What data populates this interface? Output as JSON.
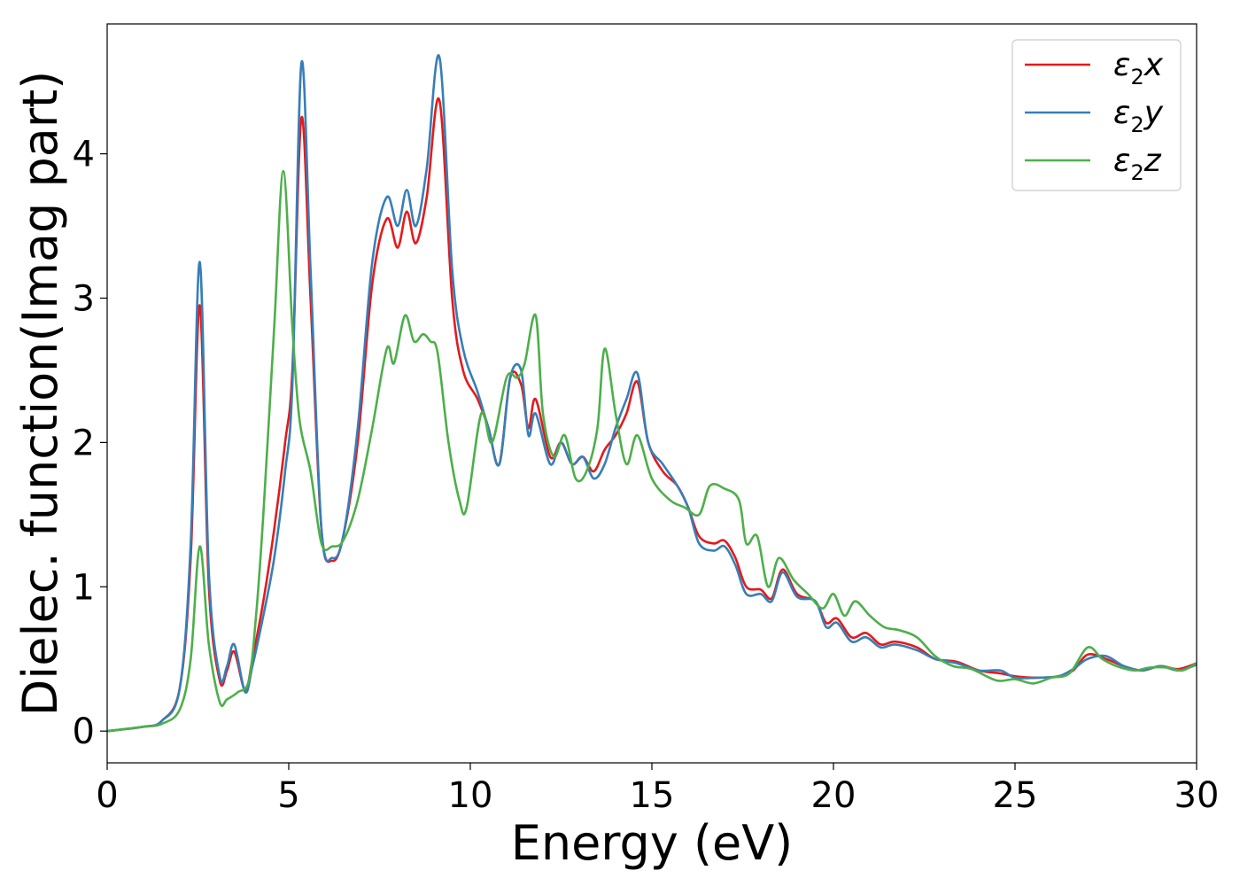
{
  "chart_data": {
    "type": "line",
    "title": "",
    "xlabel": "Energy (eV)",
    "ylabel": "Dielec. function(Imag part)",
    "xlim": [
      0,
      30
    ],
    "ylim": [
      -0.22,
      4.9
    ],
    "xticks": [
      0,
      5,
      10,
      15,
      20,
      25,
      30
    ],
    "yticks": [
      0,
      1,
      2,
      3,
      4
    ],
    "grid": false,
    "legend_position": "top-right",
    "series": [
      {
        "name": "ε₂x",
        "legend_base": "ε",
        "legend_sub": "2",
        "legend_axis": "x",
        "color": "#e41a1c",
        "points": [
          [
            0,
            0
          ],
          [
            1,
            0.03
          ],
          [
            1.5,
            0.07
          ],
          [
            2.0,
            0.3
          ],
          [
            2.3,
            1.2
          ],
          [
            2.55,
            2.95
          ],
          [
            2.8,
            1.0
          ],
          [
            3.1,
            0.35
          ],
          [
            3.3,
            0.42
          ],
          [
            3.5,
            0.55
          ],
          [
            3.8,
            0.28
          ],
          [
            4.0,
            0.5
          ],
          [
            4.3,
            0.9
          ],
          [
            4.6,
            1.4
          ],
          [
            4.9,
            2.0
          ],
          [
            5.1,
            2.5
          ],
          [
            5.35,
            4.25
          ],
          [
            5.6,
            3.0
          ],
          [
            5.9,
            1.4
          ],
          [
            6.2,
            1.18
          ],
          [
            6.5,
            1.35
          ],
          [
            6.9,
            2.0
          ],
          [
            7.3,
            3.1
          ],
          [
            7.7,
            3.55
          ],
          [
            8.0,
            3.35
          ],
          [
            8.25,
            3.6
          ],
          [
            8.5,
            3.38
          ],
          [
            8.8,
            3.7
          ],
          [
            9.15,
            4.37
          ],
          [
            9.5,
            3.0
          ],
          [
            9.8,
            2.5
          ],
          [
            10.2,
            2.3
          ],
          [
            10.5,
            2.1
          ],
          [
            10.8,
            1.85
          ],
          [
            11.1,
            2.45
          ],
          [
            11.4,
            2.4
          ],
          [
            11.6,
            2.1
          ],
          [
            11.8,
            2.3
          ],
          [
            12.2,
            1.9
          ],
          [
            12.5,
            2.0
          ],
          [
            12.8,
            1.85
          ],
          [
            13.1,
            1.9
          ],
          [
            13.4,
            1.8
          ],
          [
            13.7,
            1.95
          ],
          [
            14.0,
            2.05
          ],
          [
            14.3,
            2.2
          ],
          [
            14.6,
            2.42
          ],
          [
            14.9,
            2.0
          ],
          [
            15.3,
            1.8
          ],
          [
            15.7,
            1.7
          ],
          [
            16.0,
            1.55
          ],
          [
            16.3,
            1.35
          ],
          [
            16.7,
            1.3
          ],
          [
            17.0,
            1.32
          ],
          [
            17.3,
            1.2
          ],
          [
            17.6,
            1.0
          ],
          [
            18.0,
            0.98
          ],
          [
            18.3,
            0.92
          ],
          [
            18.6,
            1.12
          ],
          [
            19.0,
            0.95
          ],
          [
            19.5,
            0.9
          ],
          [
            19.8,
            0.75
          ],
          [
            20.1,
            0.78
          ],
          [
            20.5,
            0.65
          ],
          [
            20.9,
            0.68
          ],
          [
            21.3,
            0.6
          ],
          [
            21.7,
            0.62
          ],
          [
            22.3,
            0.58
          ],
          [
            22.8,
            0.5
          ],
          [
            23.4,
            0.48
          ],
          [
            24.0,
            0.42
          ],
          [
            24.6,
            0.4
          ],
          [
            25.0,
            0.38
          ],
          [
            25.6,
            0.37
          ],
          [
            26.2,
            0.38
          ],
          [
            26.6,
            0.42
          ],
          [
            27.0,
            0.53
          ],
          [
            27.5,
            0.5
          ],
          [
            28.0,
            0.45
          ],
          [
            28.5,
            0.42
          ],
          [
            29.0,
            0.45
          ],
          [
            29.5,
            0.43
          ],
          [
            30,
            0.47
          ]
        ]
      },
      {
        "name": "ε₂y",
        "legend_base": "ε",
        "legend_sub": "2",
        "legend_axis": "y",
        "color": "#377eb8",
        "points": [
          [
            0,
            0
          ],
          [
            1,
            0.03
          ],
          [
            1.5,
            0.07
          ],
          [
            2.0,
            0.3
          ],
          [
            2.3,
            1.3
          ],
          [
            2.55,
            3.25
          ],
          [
            2.8,
            1.1
          ],
          [
            3.1,
            0.38
          ],
          [
            3.3,
            0.45
          ],
          [
            3.5,
            0.6
          ],
          [
            3.8,
            0.27
          ],
          [
            4.0,
            0.45
          ],
          [
            4.3,
            0.8
          ],
          [
            4.6,
            1.2
          ],
          [
            4.9,
            1.8
          ],
          [
            5.1,
            2.4
          ],
          [
            5.35,
            4.63
          ],
          [
            5.6,
            3.2
          ],
          [
            5.9,
            1.4
          ],
          [
            6.2,
            1.2
          ],
          [
            6.5,
            1.35
          ],
          [
            6.9,
            2.1
          ],
          [
            7.3,
            3.25
          ],
          [
            7.7,
            3.7
          ],
          [
            8.0,
            3.5
          ],
          [
            8.25,
            3.75
          ],
          [
            8.5,
            3.5
          ],
          [
            8.8,
            3.9
          ],
          [
            9.15,
            4.67
          ],
          [
            9.5,
            3.2
          ],
          [
            9.8,
            2.65
          ],
          [
            10.2,
            2.35
          ],
          [
            10.5,
            2.1
          ],
          [
            10.8,
            1.85
          ],
          [
            11.1,
            2.45
          ],
          [
            11.4,
            2.5
          ],
          [
            11.6,
            2.05
          ],
          [
            11.8,
            2.2
          ],
          [
            12.2,
            1.85
          ],
          [
            12.5,
            2.0
          ],
          [
            12.8,
            1.85
          ],
          [
            13.1,
            1.9
          ],
          [
            13.4,
            1.75
          ],
          [
            13.7,
            1.85
          ],
          [
            14.0,
            2.1
          ],
          [
            14.3,
            2.3
          ],
          [
            14.6,
            2.48
          ],
          [
            14.9,
            2.0
          ],
          [
            15.3,
            1.85
          ],
          [
            15.7,
            1.7
          ],
          [
            16.0,
            1.55
          ],
          [
            16.3,
            1.3
          ],
          [
            16.7,
            1.25
          ],
          [
            17.0,
            1.28
          ],
          [
            17.3,
            1.15
          ],
          [
            17.6,
            0.95
          ],
          [
            18.0,
            0.95
          ],
          [
            18.3,
            0.9
          ],
          [
            18.6,
            1.1
          ],
          [
            19.0,
            0.93
          ],
          [
            19.5,
            0.9
          ],
          [
            19.8,
            0.72
          ],
          [
            20.1,
            0.75
          ],
          [
            20.5,
            0.62
          ],
          [
            20.9,
            0.65
          ],
          [
            21.3,
            0.58
          ],
          [
            21.7,
            0.6
          ],
          [
            22.3,
            0.56
          ],
          [
            22.8,
            0.5
          ],
          [
            23.4,
            0.47
          ],
          [
            24.0,
            0.42
          ],
          [
            24.6,
            0.42
          ],
          [
            25.0,
            0.37
          ],
          [
            25.6,
            0.37
          ],
          [
            26.2,
            0.38
          ],
          [
            26.6,
            0.43
          ],
          [
            27.0,
            0.5
          ],
          [
            27.5,
            0.52
          ],
          [
            28.0,
            0.45
          ],
          [
            28.5,
            0.42
          ],
          [
            29.0,
            0.45
          ],
          [
            29.5,
            0.42
          ],
          [
            30,
            0.46
          ]
        ]
      },
      {
        "name": "ε₂z",
        "legend_base": "ε",
        "legend_sub": "2",
        "legend_axis": "z",
        "color": "#4daf4a",
        "points": [
          [
            0,
            0
          ],
          [
            1,
            0.03
          ],
          [
            1.5,
            0.05
          ],
          [
            2.0,
            0.15
          ],
          [
            2.3,
            0.5
          ],
          [
            2.55,
            1.28
          ],
          [
            2.8,
            0.6
          ],
          [
            3.1,
            0.2
          ],
          [
            3.3,
            0.22
          ],
          [
            3.6,
            0.27
          ],
          [
            3.9,
            0.35
          ],
          [
            4.1,
            0.8
          ],
          [
            4.3,
            1.5
          ],
          [
            4.6,
            2.8
          ],
          [
            4.85,
            3.88
          ],
          [
            5.1,
            2.8
          ],
          [
            5.3,
            2.15
          ],
          [
            5.6,
            1.8
          ],
          [
            5.9,
            1.3
          ],
          [
            6.2,
            1.28
          ],
          [
            6.5,
            1.32
          ],
          [
            6.9,
            1.6
          ],
          [
            7.3,
            2.1
          ],
          [
            7.7,
            2.65
          ],
          [
            7.9,
            2.55
          ],
          [
            8.2,
            2.88
          ],
          [
            8.45,
            2.7
          ],
          [
            8.7,
            2.75
          ],
          [
            8.9,
            2.7
          ],
          [
            9.1,
            2.62
          ],
          [
            9.4,
            2.0
          ],
          [
            9.7,
            1.6
          ],
          [
            9.9,
            1.55
          ],
          [
            10.3,
            2.2
          ],
          [
            10.6,
            2.0
          ],
          [
            11.0,
            2.45
          ],
          [
            11.3,
            2.45
          ],
          [
            11.5,
            2.55
          ],
          [
            11.8,
            2.88
          ],
          [
            12.0,
            2.2
          ],
          [
            12.3,
            1.9
          ],
          [
            12.6,
            2.05
          ],
          [
            12.9,
            1.75
          ],
          [
            13.2,
            1.8
          ],
          [
            13.5,
            2.1
          ],
          [
            13.7,
            2.65
          ],
          [
            14.0,
            2.2
          ],
          [
            14.3,
            1.85
          ],
          [
            14.6,
            2.05
          ],
          [
            15.0,
            1.75
          ],
          [
            15.5,
            1.6
          ],
          [
            15.9,
            1.55
          ],
          [
            16.3,
            1.5
          ],
          [
            16.6,
            1.7
          ],
          [
            17.0,
            1.68
          ],
          [
            17.4,
            1.6
          ],
          [
            17.6,
            1.3
          ],
          [
            17.9,
            1.35
          ],
          [
            18.2,
            1.0
          ],
          [
            18.5,
            1.2
          ],
          [
            18.9,
            1.05
          ],
          [
            19.3,
            0.95
          ],
          [
            19.7,
            0.85
          ],
          [
            20.0,
            0.95
          ],
          [
            20.3,
            0.8
          ],
          [
            20.6,
            0.9
          ],
          [
            21.0,
            0.8
          ],
          [
            21.4,
            0.72
          ],
          [
            21.8,
            0.7
          ],
          [
            22.3,
            0.65
          ],
          [
            22.8,
            0.52
          ],
          [
            23.3,
            0.45
          ],
          [
            23.8,
            0.43
          ],
          [
            24.5,
            0.35
          ],
          [
            25.0,
            0.36
          ],
          [
            25.5,
            0.33
          ],
          [
            26.0,
            0.37
          ],
          [
            26.5,
            0.4
          ],
          [
            27.0,
            0.58
          ],
          [
            27.4,
            0.5
          ],
          [
            27.8,
            0.45
          ],
          [
            28.3,
            0.42
          ],
          [
            28.7,
            0.44
          ],
          [
            29.2,
            0.44
          ],
          [
            29.6,
            0.42
          ],
          [
            30,
            0.47
          ]
        ]
      }
    ]
  }
}
